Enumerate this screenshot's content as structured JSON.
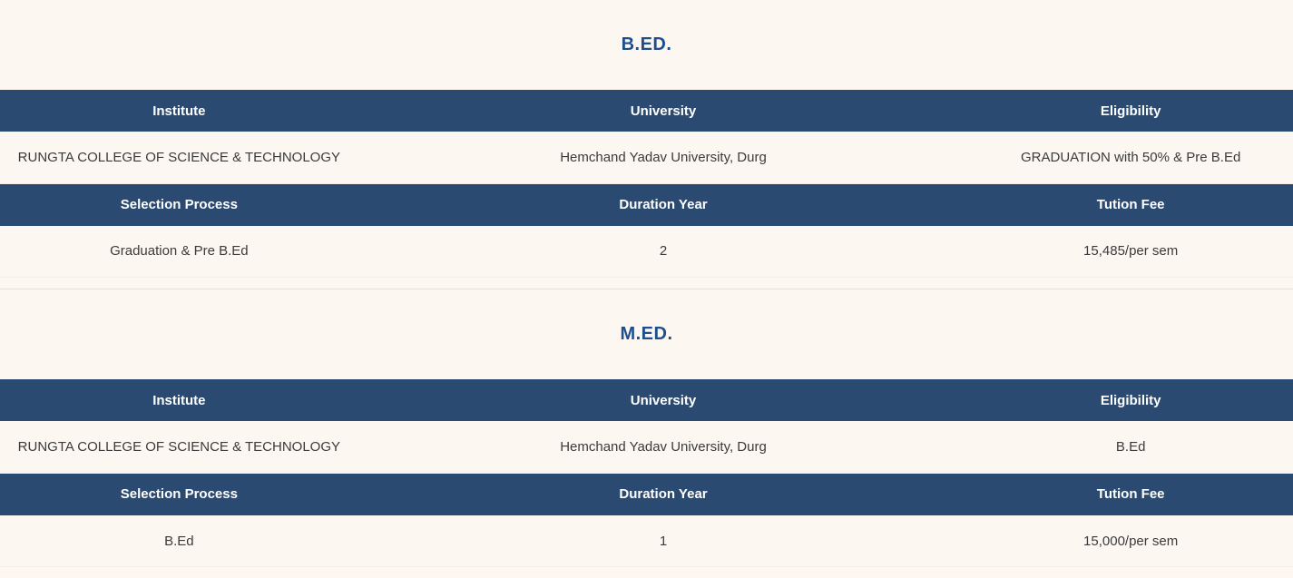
{
  "theme": {
    "bg": "#FDF7F2",
    "header_bg": "#2B4A72",
    "header_text": "#FFFFFF",
    "title_color": "#1F4E8C",
    "cell_text": "#3B3B3B",
    "divider": "#E5DFDA"
  },
  "sections": [
    {
      "title": "B.ED.",
      "tables": [
        {
          "headers": [
            "Institute",
            "University",
            "Eligibility"
          ],
          "rows": [
            [
              "RUNGTA COLLEGE OF SCIENCE & TECHNOLOGY",
              "Hemchand Yadav University, Durg",
              "GRADUATION with 50% & Pre B.Ed"
            ]
          ]
        },
        {
          "headers": [
            "Selection Process",
            "Duration Year",
            "Tution Fee"
          ],
          "rows": [
            [
              "Graduation & Pre B.Ed",
              "2",
              "15,485/per sem"
            ]
          ]
        }
      ]
    },
    {
      "title": "M.ED.",
      "tables": [
        {
          "headers": [
            "Institute",
            "University",
            "Eligibility"
          ],
          "rows": [
            [
              "RUNGTA COLLEGE OF SCIENCE & TECHNOLOGY",
              "Hemchand Yadav University, Durg",
              "B.Ed"
            ]
          ]
        },
        {
          "headers": [
            "Selection Process",
            "Duration Year",
            "Tution Fee"
          ],
          "rows": [
            [
              "B.Ed",
              "1",
              "15,000/per sem"
            ]
          ]
        }
      ]
    }
  ]
}
